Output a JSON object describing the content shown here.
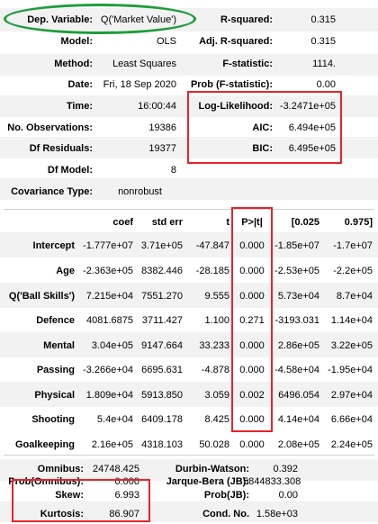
{
  "model_info": {
    "left": [
      {
        "label": "Dep. Variable:",
        "value": "Q('Market Value')"
      },
      {
        "label": "Model:",
        "value": "OLS"
      },
      {
        "label": "Method:",
        "value": "Least Squares"
      },
      {
        "label": "Date:",
        "value": "Fri, 18 Sep 2020"
      },
      {
        "label": "Time:",
        "value": "16:00:44"
      },
      {
        "label": "No. Observations:",
        "value": "19386"
      },
      {
        "label": "Df Residuals:",
        "value": "19377"
      },
      {
        "label": "Df Model:",
        "value": "8"
      },
      {
        "label": "Covariance Type:",
        "value": "nonrobust"
      }
    ],
    "right": [
      {
        "label": "R-squared:",
        "value": "0.315"
      },
      {
        "label": "Adj. R-squared:",
        "value": "0.315"
      },
      {
        "label": "F-statistic:",
        "value": "1114."
      },
      {
        "label": "Prob (F-statistic):",
        "value": "0.00"
      },
      {
        "label": "Log-Likelihood:",
        "value": "-3.2471e+05"
      },
      {
        "label": "AIC:",
        "value": "6.494e+05"
      },
      {
        "label": "BIC:",
        "value": "6.495e+05"
      }
    ]
  },
  "coef_table": {
    "headers": [
      "coef",
      "std err",
      "t",
      "P>|t|",
      "[0.025",
      "0.975]"
    ],
    "rows": [
      {
        "name": "Intercept",
        "cells": [
          "-1.777e+07",
          "3.71e+05",
          "-47.847",
          "0.000",
          "-1.85e+07",
          "-1.7e+07"
        ]
      },
      {
        "name": "Age",
        "cells": [
          "-2.363e+05",
          "8382.446",
          "-28.185",
          "0.000",
          "-2.53e+05",
          "-2.2e+05"
        ]
      },
      {
        "name": "Q('Ball Skills')",
        "cells": [
          "7.215e+04",
          "7551.270",
          "9.555",
          "0.000",
          "5.73e+04",
          "8.7e+04"
        ]
      },
      {
        "name": "Defence",
        "cells": [
          "4081.6875",
          "3711.427",
          "1.100",
          "0.271",
          "-3193.031",
          "1.14e+04"
        ]
      },
      {
        "name": "Mental",
        "cells": [
          "3.04e+05",
          "9147.664",
          "33.233",
          "0.000",
          "2.86e+05",
          "3.22e+05"
        ]
      },
      {
        "name": "Passing",
        "cells": [
          "-3.266e+04",
          "6695.631",
          "-4.878",
          "0.000",
          "-4.58e+04",
          "-1.95e+04"
        ]
      },
      {
        "name": "Physical",
        "cells": [
          "1.809e+04",
          "5913.850",
          "3.059",
          "0.002",
          "6496.054",
          "2.97e+04"
        ]
      },
      {
        "name": "Shooting",
        "cells": [
          "5.4e+04",
          "6409.178",
          "8.425",
          "0.000",
          "4.14e+04",
          "6.66e+04"
        ]
      },
      {
        "name": "Goalkeeping",
        "cells": [
          "2.16e+05",
          "4318.103",
          "50.028",
          "0.000",
          "2.08e+05",
          "2.24e+05"
        ]
      }
    ]
  },
  "diagnostics": {
    "rows": [
      {
        "l_label": "Omnibus:",
        "l_value": "24748.425",
        "r_label": "Durbin-Watson:",
        "r_value": "0.392"
      },
      {
        "l_label": "Prob(Omnibus):",
        "l_value": "0.000",
        "r_label": "Jarque-Bera (JB):",
        "r_value": "5844833.308"
      },
      {
        "l_label": "Skew:",
        "l_value": "6.993",
        "r_label": "Prob(JB):",
        "r_value": "0.00"
      },
      {
        "l_label": "Kurtosis:",
        "l_value": "86.907",
        "r_label": "Cond. No.",
        "r_value": "1.58e+03"
      }
    ]
  },
  "annotation_colors": {
    "highlight_box": "#e8232a",
    "oval": "#1f9d3a",
    "stripe": "#f2f2f2"
  }
}
